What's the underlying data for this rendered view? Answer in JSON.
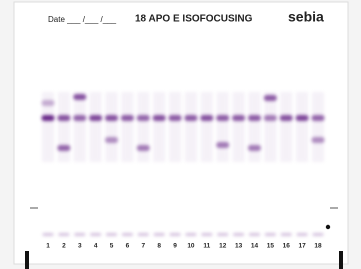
{
  "header": {
    "date": "Date ___ /___ /___",
    "title": "18 APO E ISOFOCUSING",
    "brand": "sebia"
  },
  "lanes": [
    "1",
    "2",
    "3",
    "4",
    "5",
    "6",
    "7",
    "8",
    "9",
    "10",
    "11",
    "12",
    "13",
    "14",
    "15",
    "16",
    "17",
    "18"
  ]
}
